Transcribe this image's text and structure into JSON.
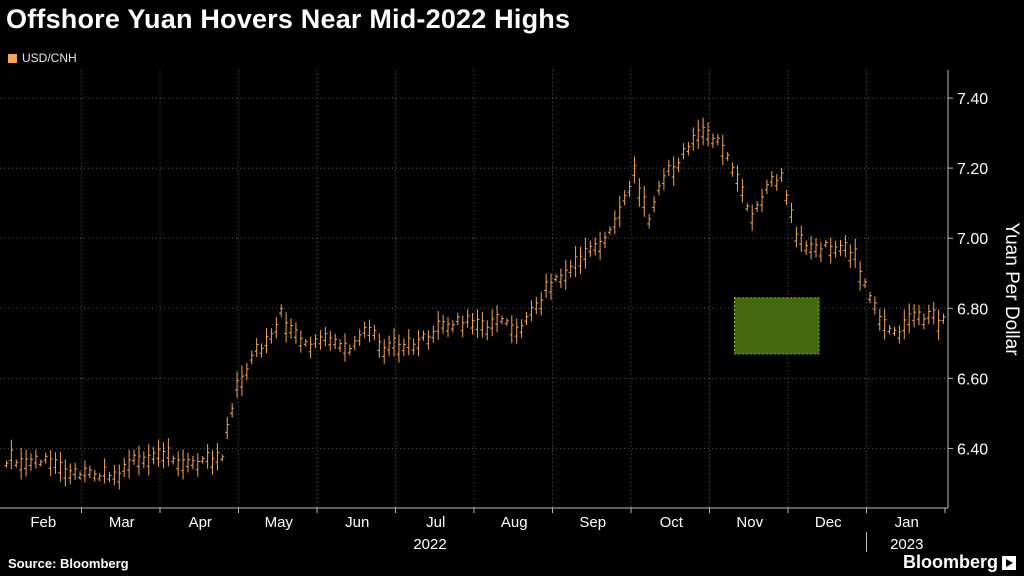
{
  "title": "Offshore Yuan Hovers Near Mid-2022 Highs",
  "legend": {
    "label": "USD/CNH",
    "color": "#f5a55a"
  },
  "source": "Source: Bloomberg",
  "brand": "Bloomberg",
  "colors": {
    "background": "#000000",
    "series": "#f5a55a",
    "highlight_fill": "#4f7d0e",
    "highlight_border": "#8cbf1e",
    "grid": "#5a5a5a",
    "text": "#ffffff"
  },
  "chart_data": {
    "type": "ohlc",
    "ylabel": "Yuan Per Dollar",
    "ylim": [
      6.23,
      7.48
    ],
    "y_ticks": [
      {
        "value": 6.4,
        "label": "6.40"
      },
      {
        "value": 6.6,
        "label": "6.60"
      },
      {
        "value": 6.8,
        "label": "6.80"
      },
      {
        "value": 7.0,
        "label": "7.00"
      },
      {
        "value": 7.2,
        "label": "7.20"
      },
      {
        "value": 7.4,
        "label": "7.40"
      }
    ],
    "months": [
      "Feb",
      "Mar",
      "Apr",
      "May",
      "Jun",
      "Jul",
      "Aug",
      "Sep",
      "Oct",
      "Nov",
      "Dec",
      "Jan"
    ],
    "year_labels": [
      "2022",
      "2023"
    ],
    "grid": true,
    "highlight": {
      "start_week": 50,
      "end_week": 54,
      "y_range": [
        6.67,
        6.83
      ]
    },
    "weekly_close": [
      6.37,
      6.36,
      6.36,
      6.35,
      6.32,
      6.32,
      6.33,
      6.33,
      6.38,
      6.38,
      6.39,
      6.37,
      6.36,
      6.37,
      6.38,
      6.58,
      6.66,
      6.7,
      6.78,
      6.72,
      6.68,
      6.72,
      6.68,
      6.7,
      6.75,
      6.68,
      6.7,
      6.7,
      6.72,
      6.75,
      6.76,
      6.76,
      6.75,
      6.77,
      6.73,
      6.78,
      6.85,
      6.9,
      6.93,
      6.97,
      7.0,
      7.08,
      7.18,
      7.05,
      7.17,
      7.22,
      7.28,
      7.3,
      7.25,
      7.17,
      7.05,
      7.15,
      7.18,
      7.0,
      6.96,
      6.97,
      6.98,
      6.95,
      6.82,
      6.75,
      6.73,
      6.77,
      6.78,
      6.76
    ]
  }
}
